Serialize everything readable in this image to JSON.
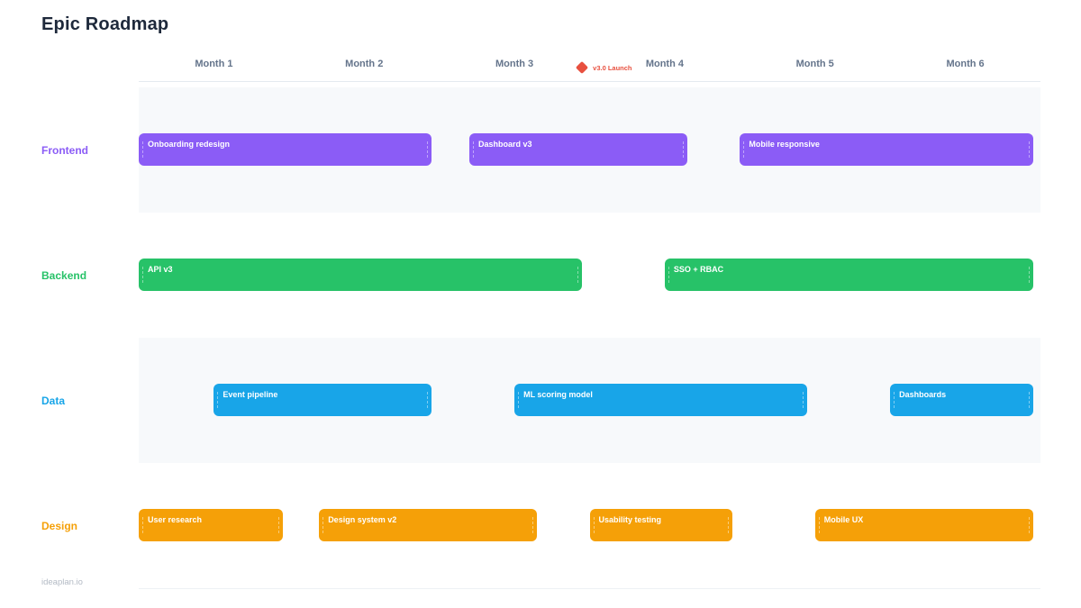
{
  "page": {
    "title": "Epic Roadmap",
    "footer": "ideaplan.io"
  },
  "chart_data": {
    "type": "gantt",
    "title": "Epic Roadmap",
    "months": [
      "Month 1",
      "Month 2",
      "Month 3",
      "Month 4",
      "Month 5",
      "Month 6"
    ],
    "axis_range_months": [
      1,
      7
    ],
    "grid": false,
    "milestone": {
      "label": "v3.0 Launch",
      "month": 3.95,
      "color": "#e8503f",
      "icon": "diamond-icon"
    },
    "lanes": [
      {
        "label": "Frontend",
        "color": "#8b5cf6",
        "shaded": true,
        "epics": [
          {
            "label": "Onboarding redesign",
            "start": 1.0,
            "end": 2.95
          },
          {
            "label": "Dashboard v3",
            "start": 3.2,
            "end": 4.65
          },
          {
            "label": "Mobile responsive",
            "start": 5.0,
            "end": 6.95
          }
        ]
      },
      {
        "label": "Backend",
        "color": "#27c268",
        "shaded": false,
        "epics": [
          {
            "label": "API v3",
            "start": 1.0,
            "end": 3.95
          },
          {
            "label": "SSO + RBAC",
            "start": 4.5,
            "end": 6.95
          }
        ]
      },
      {
        "label": "Data",
        "color": "#18a5e8",
        "shaded": true,
        "epics": [
          {
            "label": "Event pipeline",
            "start": 1.5,
            "end": 2.95
          },
          {
            "label": "ML scoring model",
            "start": 3.5,
            "end": 5.45
          },
          {
            "label": "Dashboards",
            "start": 6.0,
            "end": 6.95
          }
        ]
      },
      {
        "label": "Design",
        "color": "#f5a008",
        "shaded": false,
        "epics": [
          {
            "label": "User research",
            "start": 1.0,
            "end": 1.96
          },
          {
            "label": "Design system v2",
            "start": 2.2,
            "end": 3.65
          },
          {
            "label": "Usability testing",
            "start": 4.0,
            "end": 4.95
          },
          {
            "label": "Mobile UX",
            "start": 5.5,
            "end": 6.95
          }
        ]
      }
    ]
  }
}
